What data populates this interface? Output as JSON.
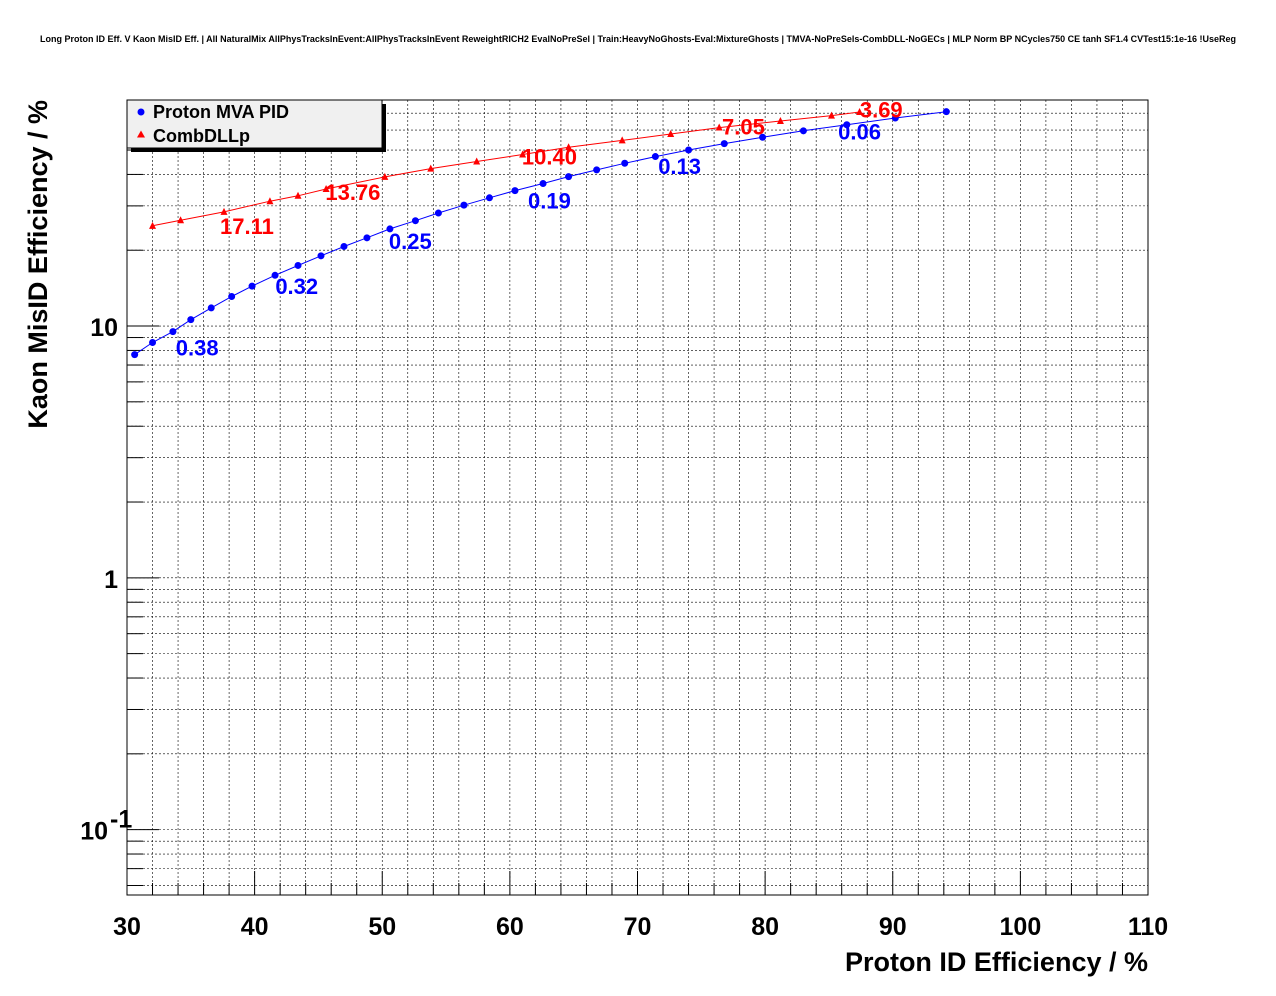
{
  "chart_data": {
    "type": "line",
    "title": "Long Proton ID Eff. V Kaon MisID Eff. | All NaturalMix AllPhysTracksInEvent:AllPhysTracksInEvent ReweightRICH2 EvalNoPreSel | Train:HeavyNoGhosts-Eval:MixtureGhosts | TMVA-NoPreSels-CombDLL-NoGECs | MLP Norm BP NCycles750 CE tanh SF1.4 CVTest15:1e-16 !UseReg",
    "xlabel": "Proton ID Efficiency / %",
    "ylabel": "Kaon MisID Efficiency / %",
    "xlim": [
      30,
      110
    ],
    "ylim": [
      0.055,
      79
    ],
    "yscale": "log",
    "grid": true,
    "legend_position": "top-left",
    "x_ticks": [
      "30",
      "40",
      "50",
      "60",
      "70",
      "80",
      "90",
      "100",
      "110"
    ],
    "y_ticks": [
      {
        "value": 0.1,
        "base": "10",
        "exp": "-1"
      },
      {
        "value": 1,
        "base": "1",
        "exp": ""
      },
      {
        "value": 10,
        "base": "10",
        "exp": ""
      }
    ],
    "series": [
      {
        "name": "Proton MVA PID",
        "color": "#0000ff",
        "marker": "circle",
        "x": [
          30.6,
          32.0,
          33.6,
          35.0,
          36.6,
          38.2,
          39.8,
          41.6,
          43.4,
          45.2,
          47.0,
          48.8,
          50.6,
          52.6,
          54.4,
          56.4,
          58.4,
          60.4,
          62.6,
          64.6,
          66.8,
          69.0,
          71.4,
          74.0,
          76.8,
          79.8,
          83.0,
          86.4,
          90.2,
          94.2
        ],
        "y": [
          7.7,
          8.6,
          9.5,
          10.6,
          11.8,
          13.1,
          14.4,
          15.9,
          17.4,
          19.0,
          20.7,
          22.4,
          24.3,
          26.2,
          28.1,
          30.2,
          32.3,
          34.5,
          36.8,
          39.2,
          41.7,
          44.3,
          47.1,
          50.0,
          53.0,
          56.2,
          59.6,
          63.0,
          67.0,
          71.0
        ]
      },
      {
        "name": "CombDLLp",
        "color": "#ff0000",
        "marker": "triangle",
        "x": [
          32.0,
          34.2,
          37.6,
          41.2,
          43.4,
          45.6,
          50.2,
          53.8,
          57.4,
          61.0,
          64.6,
          68.8,
          72.6,
          76.4,
          81.2,
          85.2,
          87.4
        ],
        "y": [
          25.0,
          26.3,
          28.4,
          31.3,
          32.9,
          35.0,
          39.1,
          42.2,
          45.0,
          48.0,
          51.3,
          54.6,
          57.9,
          61.4,
          65.2,
          68.5,
          70.8
        ]
      }
    ],
    "annotations": [
      {
        "text": "0.38",
        "series": "Proton MVA PID",
        "x": 35.5,
        "y": 8.2
      },
      {
        "text": "0.32",
        "series": "Proton MVA PID",
        "x": 43.3,
        "y": 14.4
      },
      {
        "text": "0.25",
        "series": "Proton MVA PID",
        "x": 52.2,
        "y": 21.8
      },
      {
        "text": "0.19",
        "series": "Proton MVA PID",
        "x": 63.1,
        "y": 31.5
      },
      {
        "text": "0.13",
        "series": "Proton MVA PID",
        "x": 73.3,
        "y": 43.3
      },
      {
        "text": "0.06",
        "series": "Proton MVA PID",
        "x": 87.4,
        "y": 59.3
      },
      {
        "text": "17.11",
        "series": "CombDLLp",
        "x": 39.4,
        "y": 25.0
      },
      {
        "text": "13.76",
        "series": "CombDLLp",
        "x": 47.7,
        "y": 34.0
      },
      {
        "text": "10.40",
        "series": "CombDLLp",
        "x": 63.1,
        "y": 47.1
      },
      {
        "text": "7.05",
        "series": "CombDLLp",
        "x": 78.3,
        "y": 62.0
      },
      {
        "text": "3.69",
        "series": "CombDLLp",
        "x": 89.1,
        "y": 72.3
      }
    ]
  }
}
